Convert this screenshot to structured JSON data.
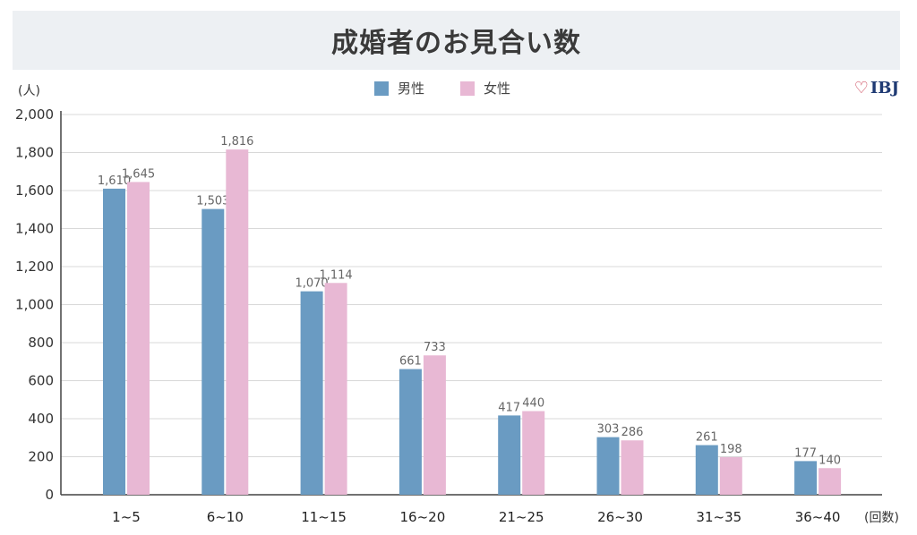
{
  "title": "成婚者のお見合い数",
  "logo_text": "IBJ",
  "colors": {
    "male": "#6a9bc2",
    "female": "#e8b8d4",
    "grid": "#d8d8d8",
    "axis": "#444444"
  },
  "chart_data": {
    "type": "bar",
    "title": "成婚者のお見合い数",
    "ylabel": "(人)",
    "xlabel": "(回数)",
    "ylim": [
      0,
      2000
    ],
    "yticks": [
      "0",
      "200",
      "400",
      "600",
      "800",
      "1,000",
      "1,200",
      "1,400",
      "1,600",
      "1,800",
      "2,000"
    ],
    "ytick_values": [
      0,
      200,
      400,
      600,
      800,
      1000,
      1200,
      1400,
      1600,
      1800,
      2000
    ],
    "grid": true,
    "legend_position": "top-center",
    "categories": [
      "1~5",
      "6~10",
      "11~15",
      "16~20",
      "21~25",
      "26~30",
      "31~35",
      "36~40"
    ],
    "series": [
      {
        "name": "男性",
        "values": [
          1610,
          1503,
          1070,
          661,
          417,
          303,
          261,
          177
        ],
        "labels": [
          "1,610",
          "1,503",
          "1,070",
          "661",
          "417",
          "303",
          "261",
          "177"
        ]
      },
      {
        "name": "女性",
        "values": [
          1645,
          1816,
          1114,
          733,
          440,
          286,
          198,
          140
        ],
        "labels": [
          "1,645",
          "1,816",
          "1,114",
          "733",
          "440",
          "286",
          "198",
          "140"
        ]
      }
    ]
  }
}
